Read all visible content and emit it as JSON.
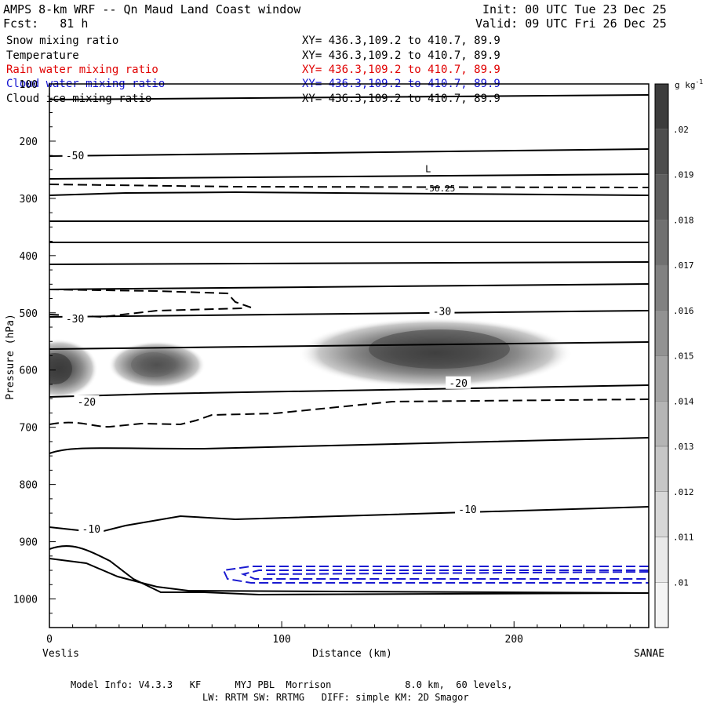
{
  "header": {
    "title": "AMPS 8-km WRF -- Qn Maud Land Coast window",
    "forecast": "Fcst:   81 h",
    "init": "Init: 00 UTC Tue 23 Dec 25",
    "valid": "Valid: 09 UTC Fri 26 Dec 25"
  },
  "fields": [
    {
      "name": "Snow mixing ratio",
      "xy": "XY= 436.3,109.2 to 410.7, 89.9",
      "color": "#000000"
    },
    {
      "name": "Temperature",
      "xy": "XY= 436.3,109.2 to 410.7, 89.9",
      "color": "#000000"
    },
    {
      "name": "Rain water mixing ratio",
      "xy": "XY= 436.3,109.2 to 410.7, 89.9",
      "color": "#e00000"
    },
    {
      "name": "Cloud water mixing ratio",
      "xy": "XY= 436.3,109.2 to 410.7, 89.9",
      "color": "#1010d0"
    },
    {
      "name": "Cloud ice mixing ratio",
      "xy": "XY= 436.3,109.2 to 410.7, 89.9",
      "color": "#000000"
    }
  ],
  "chart_data": {
    "type": "contour cross-section",
    "xlabel": "Distance (km)",
    "ylabel": "Pressure (hPa)",
    "xlim": [
      0,
      258
    ],
    "ylim": [
      1050,
      100
    ],
    "x_ticks": [
      0,
      100,
      200
    ],
    "y_ticks": [
      100,
      200,
      300,
      400,
      500,
      600,
      700,
      800,
      900,
      1000
    ],
    "x_end_labels": {
      "left": "Veslis",
      "right": "SANAE"
    },
    "colorbar": {
      "unit": "g kg",
      "unit_exponent": "-1",
      "levels": [
        ".02",
        ".019",
        ".018",
        ".017",
        ".016",
        ".015",
        ".014",
        ".013",
        ".012",
        ".011",
        ".01"
      ]
    },
    "temperature_labels": [
      {
        "text": "-50",
        "x": 11,
        "p": 225
      },
      {
        "text": "-30",
        "x": 11,
        "p": 510
      },
      {
        "text": "-30",
        "x": 169,
        "p": 497
      },
      {
        "text": "-20",
        "x": 16,
        "p": 655
      },
      {
        "text": "-20",
        "x": 176,
        "p": 622
      },
      {
        "text": "-10",
        "x": 18,
        "p": 877
      },
      {
        "text": "-10",
        "x": 180,
        "p": 843
      }
    ],
    "low_marker": {
      "text": "L",
      "x": 163,
      "p": 265
    },
    "minimum_label": {
      "text": "-56.25",
      "x": 168,
      "p": 282
    },
    "snow_maxima": [
      {
        "x": 160,
        "p": 570,
        "value": 0.02
      },
      {
        "x": 5,
        "p": 610,
        "value": 0.019
      },
      {
        "x": 40,
        "p": 605,
        "value": 0.018
      }
    ]
  },
  "footer": {
    "line1": "Model Info: V4.3.3   KF      MYJ PBL  Morrison             8.0 km,  60 levels,",
    "line2": "LW: RRTM SW: RRTMG   DIFF: simple KM: 2D Smagor"
  }
}
